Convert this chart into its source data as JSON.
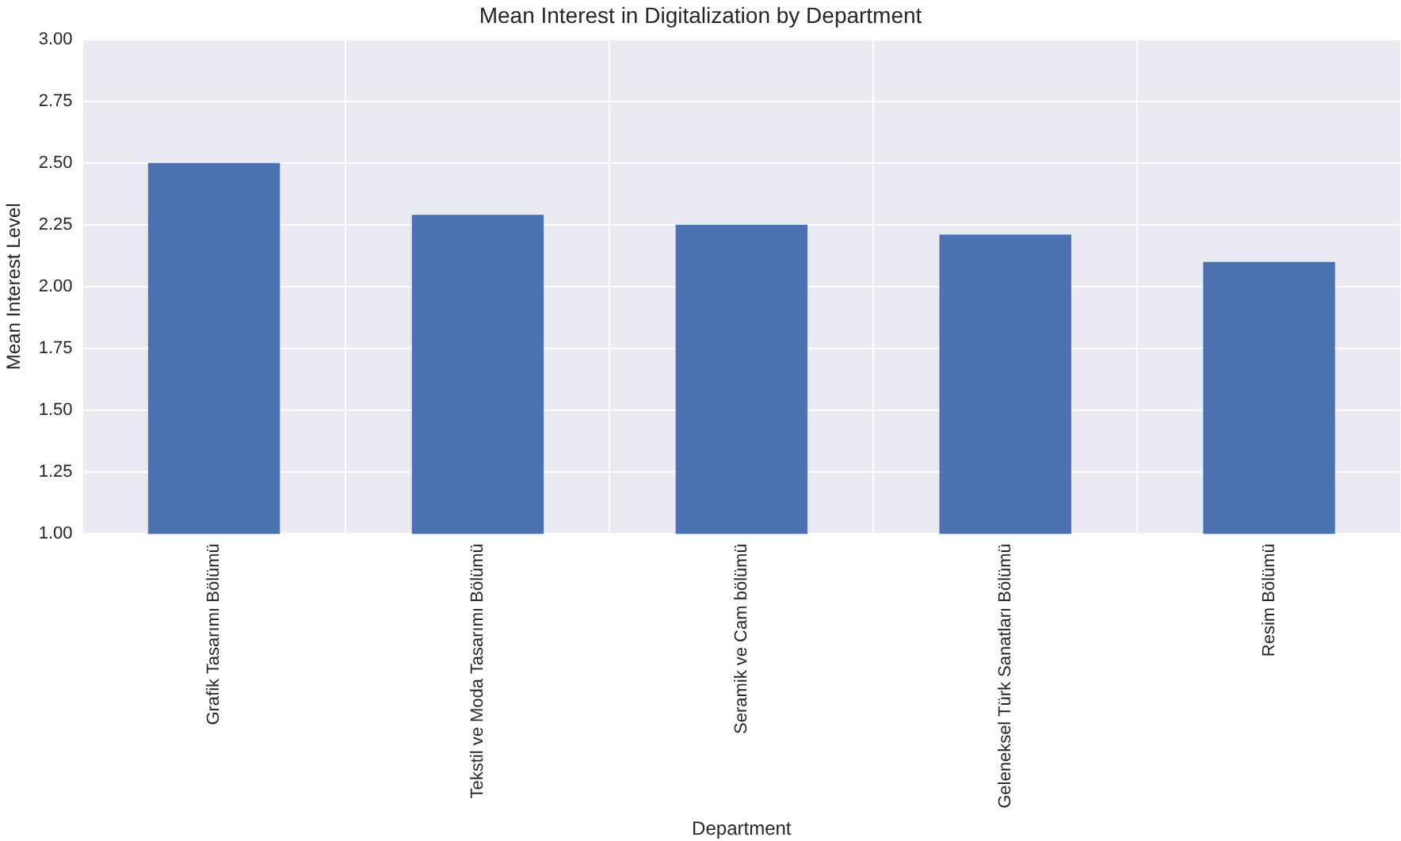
{
  "chart_data": {
    "type": "bar",
    "title": "Mean Interest in Digitalization by Department",
    "xlabel": "Department",
    "ylabel": "Mean Interest Level",
    "categories": [
      "Grafik Tasarımı Bölümü",
      "Tekstil ve Moda Tasarımı Bölümü",
      "Seramik ve Cam bölümü",
      "Geleneksel Türk Sanatları Bölümü",
      "Resim Bölümü"
    ],
    "values": [
      2.5,
      2.29,
      2.25,
      2.21,
      2.1
    ],
    "color": "#4c72b0",
    "ylim": [
      1,
      3
    ],
    "yticks": [
      {
        "value": 1,
        "label": "1.00"
      },
      1.25,
      {
        "value": 1.5,
        "label": "1.50"
      },
      1.75,
      {
        "value": 2,
        "label": "2.00"
      },
      2.25,
      {
        "value": 2.5,
        "label": "2.50"
      },
      2.75,
      {
        "value": 3,
        "label": "3.00"
      }
    ],
    "grid": true
  }
}
